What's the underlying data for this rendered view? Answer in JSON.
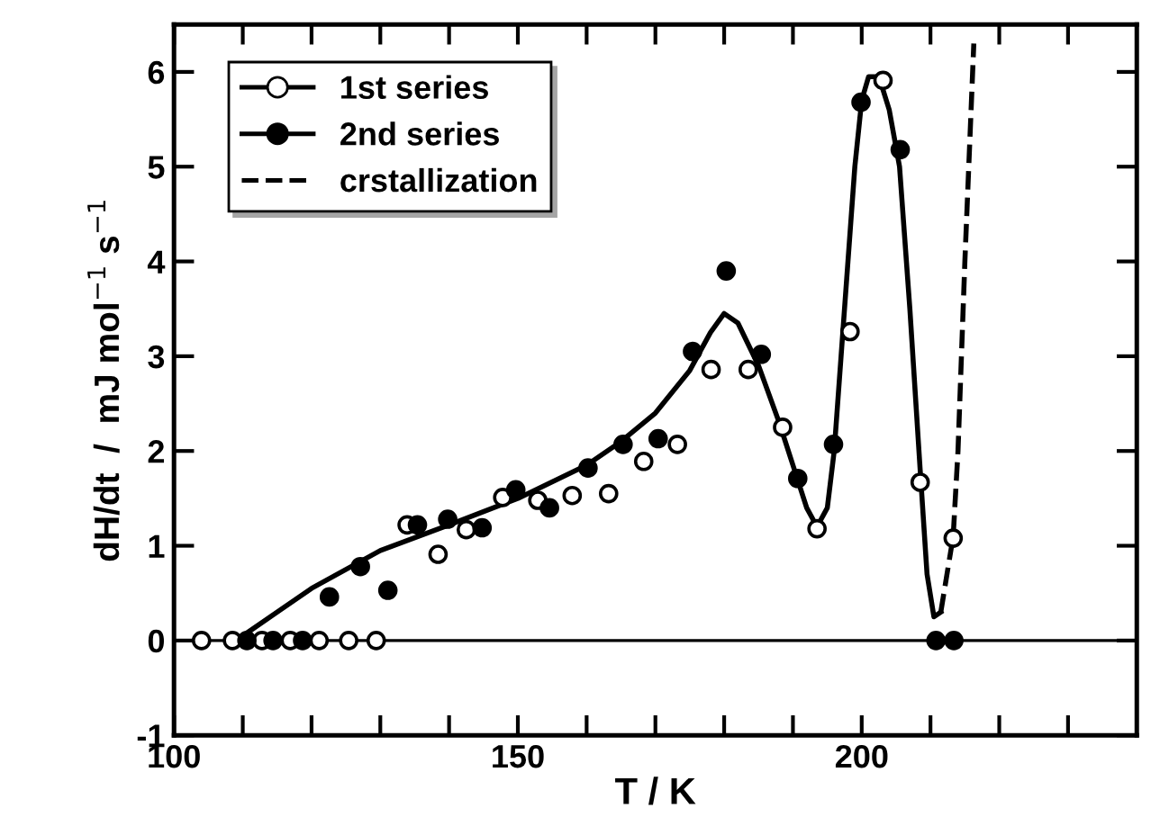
{
  "chart_data": {
    "type": "scatter",
    "xlabel": "T / K",
    "ylabel": "dH/dt  /  mJ mol$^{−1}$ s$^{−1}$",
    "xlim": [
      100,
      240
    ],
    "ylim": [
      -1,
      6.5
    ],
    "xticks": [
      100,
      {
        "value": 110,
        "label": null
      },
      {
        "value": 120,
        "label": null
      },
      {
        "value": 130,
        "label": null
      },
      {
        "value": 140,
        "label": null
      },
      150,
      {
        "value": 160,
        "label": null
      },
      {
        "value": 170,
        "label": null
      },
      {
        "value": 180,
        "label": null
      },
      {
        "value": 190,
        "label": null
      },
      200,
      {
        "value": 210,
        "label": null
      },
      {
        "value": 220,
        "label": null
      },
      {
        "value": 230,
        "label": null
      }
    ],
    "yticks": [
      -1,
      0,
      1,
      2,
      3,
      4,
      5,
      6
    ],
    "grid": false,
    "legend": "top left",
    "ref_lines": [
      {
        "axis": "y",
        "value": 0,
        "color": "#000000"
      }
    ],
    "series": [
      {
        "name": "1st series",
        "marker": "circle",
        "color": "#ffffff",
        "x": [
          104,
          108.5,
          112.8,
          116.9,
          121.1,
          125.4,
          129.4,
          133.9,
          138.4,
          142.5,
          147.8,
          152.9,
          157.9,
          163.2,
          168.3,
          173.2,
          178.1,
          183.5,
          188.5,
          193.5,
          198.3,
          203.1,
          208.5,
          213.3
        ],
        "values": [
          0,
          0,
          0,
          0,
          0,
          0,
          0,
          1.22,
          0.91,
          1.17,
          1.51,
          1.48,
          1.53,
          1.55,
          1.89,
          2.07,
          2.86,
          2.86,
          2.25,
          1.18,
          3.26,
          5.91,
          1.67,
          1.08
        ]
      },
      {
        "name": "2nd series",
        "marker": "circle",
        "color": "#000000",
        "x": [
          110.6,
          114.4,
          118.7,
          122.6,
          127.1,
          131.1,
          135.4,
          139.8,
          144.8,
          149.7,
          154.6,
          160.2,
          165.3,
          170.4,
          175.4,
          180.3,
          185.4,
          190.7,
          195.9,
          199.9,
          205.6,
          210.8,
          213.4
        ],
        "values": [
          0,
          0,
          0,
          0.46,
          0.78,
          0.53,
          1.22,
          1.28,
          1.19,
          1.59,
          1.4,
          1.82,
          2.07,
          2.13,
          3.05,
          3.9,
          3.02,
          1.71,
          2.07,
          5.68,
          5.18,
          0,
          0
        ]
      },
      {
        "type": "line",
        "line_style": "solid",
        "color": "#000000",
        "x": [
          108,
          110,
          115,
          120,
          130,
          140,
          150,
          160,
          165,
          170,
          175,
          178,
          180,
          182,
          185,
          188,
          190,
          192,
          193.5,
          195,
          196,
          197,
          198,
          199,
          200,
          201,
          202.5,
          204,
          205.5,
          207,
          208.5,
          209.5,
          210.5,
          211.5
        ],
        "values": [
          0,
          0.05,
          0.3,
          0.55,
          0.95,
          1.22,
          1.5,
          1.85,
          2.1,
          2.4,
          2.85,
          3.25,
          3.45,
          3.35,
          2.9,
          2.3,
          1.85,
          1.4,
          1.2,
          1.4,
          2.0,
          3.0,
          4.0,
          5.0,
          5.7,
          5.95,
          5.95,
          5.6,
          5.0,
          3.5,
          1.8,
          0.7,
          0.25,
          0.3
        ]
      },
      {
        "name": "crstallization",
        "type": "line",
        "line_style": "dashed",
        "color": "#000000",
        "x": [
          211.5,
          213.3,
          214,
          215,
          216.3
        ],
        "values": [
          0.3,
          1.1,
          2,
          4,
          6.3
        ]
      }
    ]
  }
}
